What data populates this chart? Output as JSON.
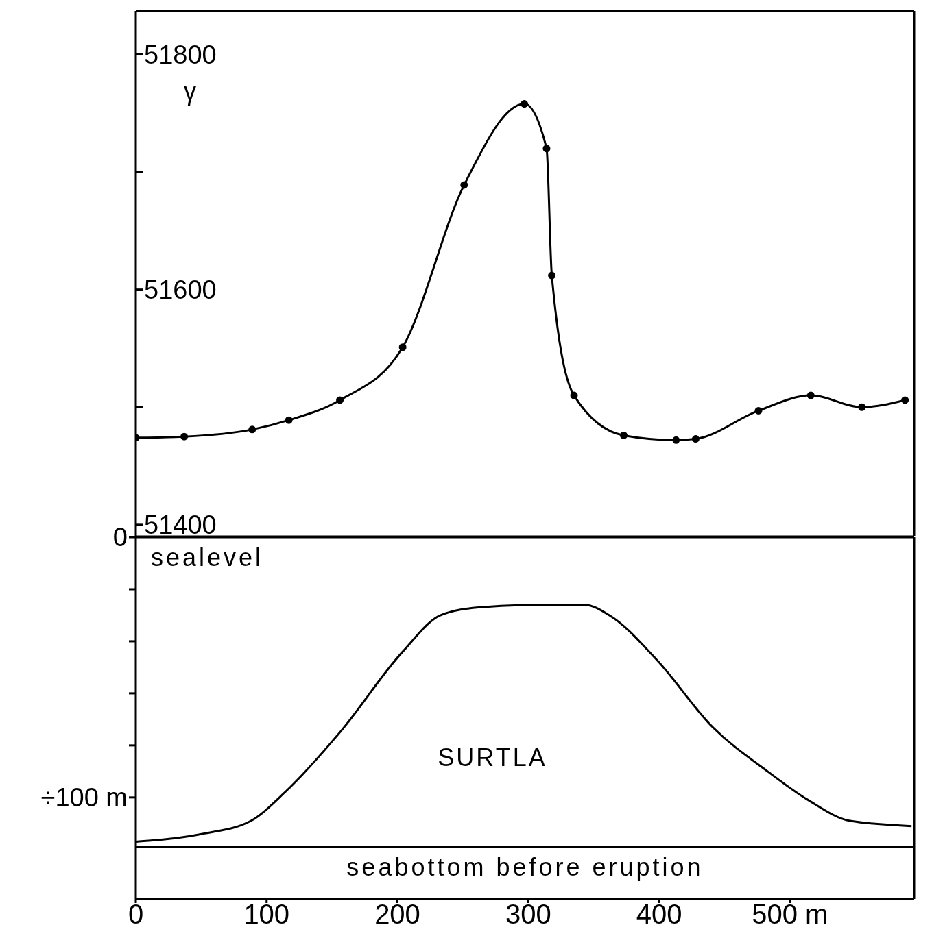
{
  "chart_data": [
    {
      "type": "line",
      "ylabel": "γ",
      "x": [
        0,
        37,
        89,
        117,
        156,
        204,
        251,
        297,
        314,
        318,
        335,
        373,
        413,
        428,
        476,
        516,
        555,
        588
      ],
      "series": [
        {
          "color": "#000000",
          "values": [
            51474,
            51475,
            51481,
            51489,
            51506,
            51551,
            51689,
            51758,
            51720,
            51612,
            51510,
            51476,
            51472,
            51473,
            51497,
            51510,
            51500,
            51506
          ]
        }
      ],
      "xlim": [
        0,
        595
      ],
      "ylim": [
        51390,
        51837
      ],
      "yticks": [
        51400,
        {
          "value": 51500,
          "label": null
        },
        51600,
        {
          "value": 51700,
          "label": null
        },
        51800
      ],
      "tick_labels": "y",
      "marker": "circle",
      "line_style": "solid",
      "grid": false,
      "legend": false
    },
    {
      "type": "line",
      "x": [
        0,
        51,
        88,
        114,
        156,
        204,
        233,
        262,
        304,
        343,
        362,
        398,
        441,
        483,
        514,
        546,
        593
      ],
      "series": [
        {
          "color": "#000000",
          "values": [
            -117,
            -114,
            -109,
            -98,
            -75,
            -44,
            -30,
            -27,
            -26,
            -26,
            -30,
            -47,
            -73,
            -90,
            -101,
            -109,
            -111
          ]
        }
      ],
      "xlim": [
        0,
        595
      ],
      "ylim": [
        -139,
        0
      ],
      "xticks": [
        0,
        100,
        200,
        300,
        400,
        {
          "value": 500,
          "label": "500 m"
        }
      ],
      "yticks": [
        {
          "value": 0,
          "label": "0"
        },
        {
          "value": -20,
          "label": null
        },
        {
          "value": -40,
          "label": null
        },
        {
          "value": -60,
          "label": null
        },
        {
          "value": -80,
          "label": null
        },
        {
          "value": -100,
          "label": "÷100 m"
        }
      ],
      "ref_lines": [
        {
          "axis": "y",
          "value": 0,
          "label": "sealevel"
        },
        {
          "axis": "y",
          "value": -119,
          "label": "seabottom before eruption"
        }
      ],
      "annotations": [
        "SURTLA"
      ],
      "marker": "none",
      "line_style": "solid",
      "grid": false,
      "legend": false
    }
  ]
}
